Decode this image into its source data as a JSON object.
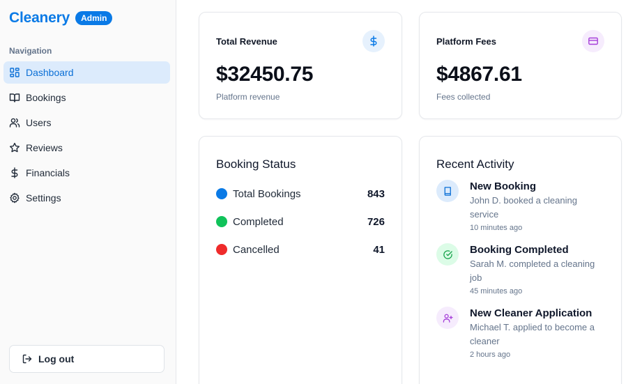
{
  "sidebar": {
    "brand": "Cleanery",
    "badge": "Admin",
    "nav_heading": "Navigation",
    "items": [
      {
        "label": "Dashboard",
        "icon": "dashboard-icon",
        "active": true
      },
      {
        "label": "Bookings",
        "icon": "book-icon"
      },
      {
        "label": "Users",
        "icon": "users-icon"
      },
      {
        "label": "Reviews",
        "icon": "star-icon"
      },
      {
        "label": "Financials",
        "icon": "dollar-icon"
      },
      {
        "label": "Settings",
        "icon": "gear-icon"
      }
    ],
    "logout_label": "Log out"
  },
  "stats": {
    "revenue": {
      "title": "Total Revenue",
      "value": "$32450.75",
      "sub": "Platform revenue",
      "icon": "dollar-icon"
    },
    "fees": {
      "title": "Platform Fees",
      "value": "$4867.61",
      "sub": "Fees collected",
      "icon": "credit-card-icon"
    }
  },
  "booking_status": {
    "title": "Booking Status",
    "rows": [
      {
        "label": "Total Bookings",
        "count": "843",
        "color": "#0a7ae6"
      },
      {
        "label": "Completed",
        "count": "726",
        "color": "#10c25a"
      },
      {
        "label": "Cancelled",
        "count": "41",
        "color": "#ef2b2b"
      }
    ]
  },
  "recent_activity": {
    "title": "Recent Activity",
    "items": [
      {
        "title": "New Booking",
        "desc": "John D. booked a cleaning service",
        "time": "10 minutes ago",
        "icon": "book-icon"
      },
      {
        "title": "Booking Completed",
        "desc": "Sarah M. completed a cleaning job",
        "time": "45 minutes ago",
        "icon": "check-circle-icon"
      },
      {
        "title": "New Cleaner Application",
        "desc": "Michael T. applied to become a cleaner",
        "time": "2 hours ago",
        "icon": "user-plus-icon"
      }
    ]
  },
  "colors": {
    "brand": "#0a7ae6",
    "active_bg": "#dcebfc"
  }
}
